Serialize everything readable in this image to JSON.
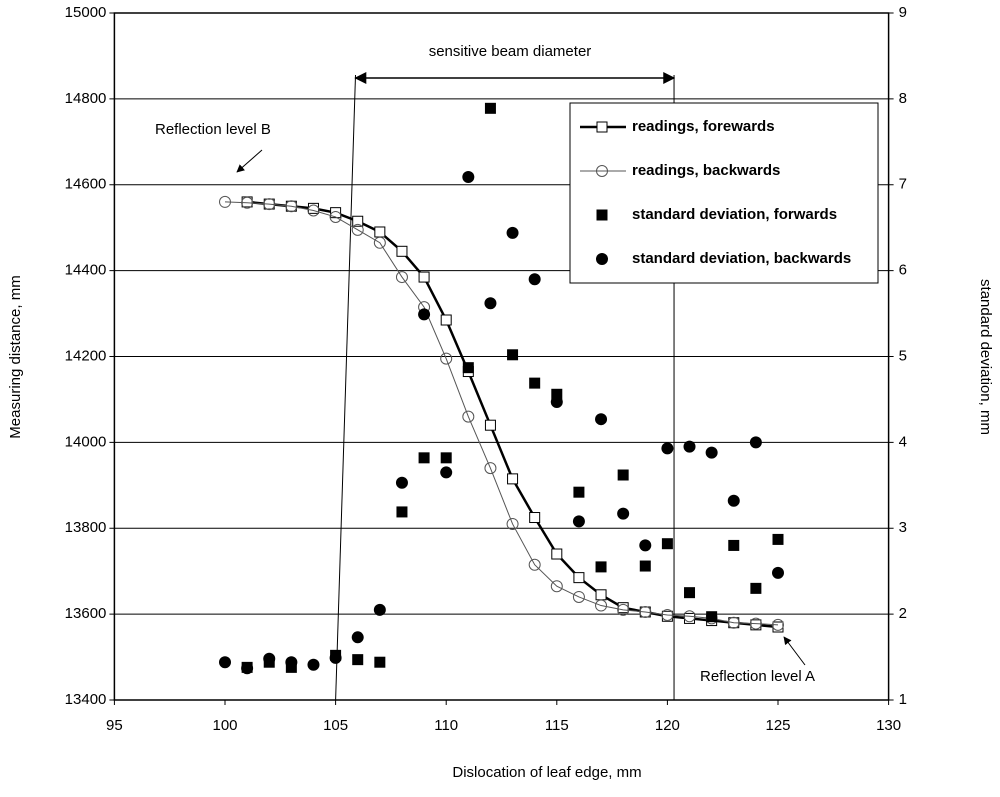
{
  "chart_data": {
    "type": "scatter",
    "xlabel": "Dislocation of leaf edge,  mm",
    "ylabel": "Measuring distance, mm",
    "y2label": "standard deviation, mm",
    "xlim": [
      95,
      130
    ],
    "xticks": [
      95,
      100,
      105,
      110,
      115,
      120,
      125,
      130
    ],
    "ylim": [
      13400,
      15000
    ],
    "yticks": [
      13400,
      13600,
      13800,
      14000,
      14200,
      14400,
      14600,
      14800,
      15000
    ],
    "y2lim": [
      1,
      9
    ],
    "y2ticks": [
      1,
      2,
      3,
      4,
      5,
      6,
      7,
      8,
      9
    ],
    "grid": true,
    "legend": "upper right",
    "annotations": {
      "beam": "sensitive beam diameter",
      "levelB": "Reflection level B",
      "levelA": "Reflection level A"
    },
    "series": [
      {
        "name": "readings, forewards",
        "color": "#000000",
        "marker": "open-square",
        "line": "thick",
        "x": [
          101,
          102,
          103,
          104,
          105,
          106,
          107,
          108,
          109,
          110,
          111,
          112,
          113,
          114,
          115,
          116,
          117,
          118,
          119,
          120,
          121,
          122,
          123,
          124,
          125
        ],
        "values": [
          14560,
          14555,
          14550,
          14545,
          14535,
          14515,
          14490,
          14445,
          14385,
          14285,
          14165,
          14040,
          13915,
          13825,
          13740,
          13685,
          13645,
          13615,
          13605,
          13595,
          13590,
          13585,
          13580,
          13575,
          13570
        ]
      },
      {
        "name": "readings, backwards",
        "color": "#555555",
        "marker": "open-circle",
        "line": "thin",
        "x": [
          100,
          101,
          102,
          103,
          104,
          105,
          106,
          107,
          108,
          109,
          110,
          111,
          112,
          113,
          114,
          115,
          116,
          117,
          118,
          119,
          120,
          121,
          122,
          123,
          124,
          125
        ],
        "values": [
          14560,
          14558,
          14555,
          14550,
          14540,
          14525,
          14495,
          14465,
          14385,
          14315,
          14195,
          14060,
          13940,
          13810,
          13715,
          13665,
          13640,
          13620,
          13610,
          13605,
          13598,
          13595,
          13590,
          13580,
          13578,
          13575
        ]
      },
      {
        "name": "standard deviation, forwards",
        "color": "#000000",
        "marker": "square",
        "axis": "y2",
        "x": [
          101,
          102,
          103,
          105,
          106,
          107,
          108,
          109,
          110,
          111,
          112,
          113,
          114,
          115,
          116,
          117,
          118,
          119,
          120,
          121,
          122,
          123,
          124,
          125
        ],
        "values": [
          1.38,
          1.44,
          1.38,
          1.52,
          1.47,
          1.44,
          3.19,
          3.82,
          3.82,
          4.87,
          7.89,
          5.02,
          4.69,
          4.56,
          3.42,
          2.55,
          3.62,
          2.56,
          2.82,
          2.25,
          1.97,
          2.8,
          2.3,
          2.87
        ]
      },
      {
        "name": "standard deviation, backwards",
        "color": "#000000",
        "marker": "circle",
        "axis": "y2",
        "x": [
          100,
          101,
          102,
          103,
          104,
          105,
          106,
          107,
          108,
          109,
          110,
          111,
          112,
          113,
          114,
          115,
          116,
          117,
          118,
          119,
          120,
          121,
          122,
          123,
          124,
          125
        ],
        "values": [
          1.44,
          1.37,
          1.48,
          1.44,
          1.41,
          1.49,
          1.73,
          2.05,
          3.53,
          5.49,
          3.65,
          7.09,
          5.62,
          6.44,
          5.9,
          4.47,
          3.08,
          4.27,
          3.17,
          2.8,
          3.93,
          3.95,
          3.88,
          3.32,
          4.0,
          2.48
        ]
      }
    ]
  }
}
